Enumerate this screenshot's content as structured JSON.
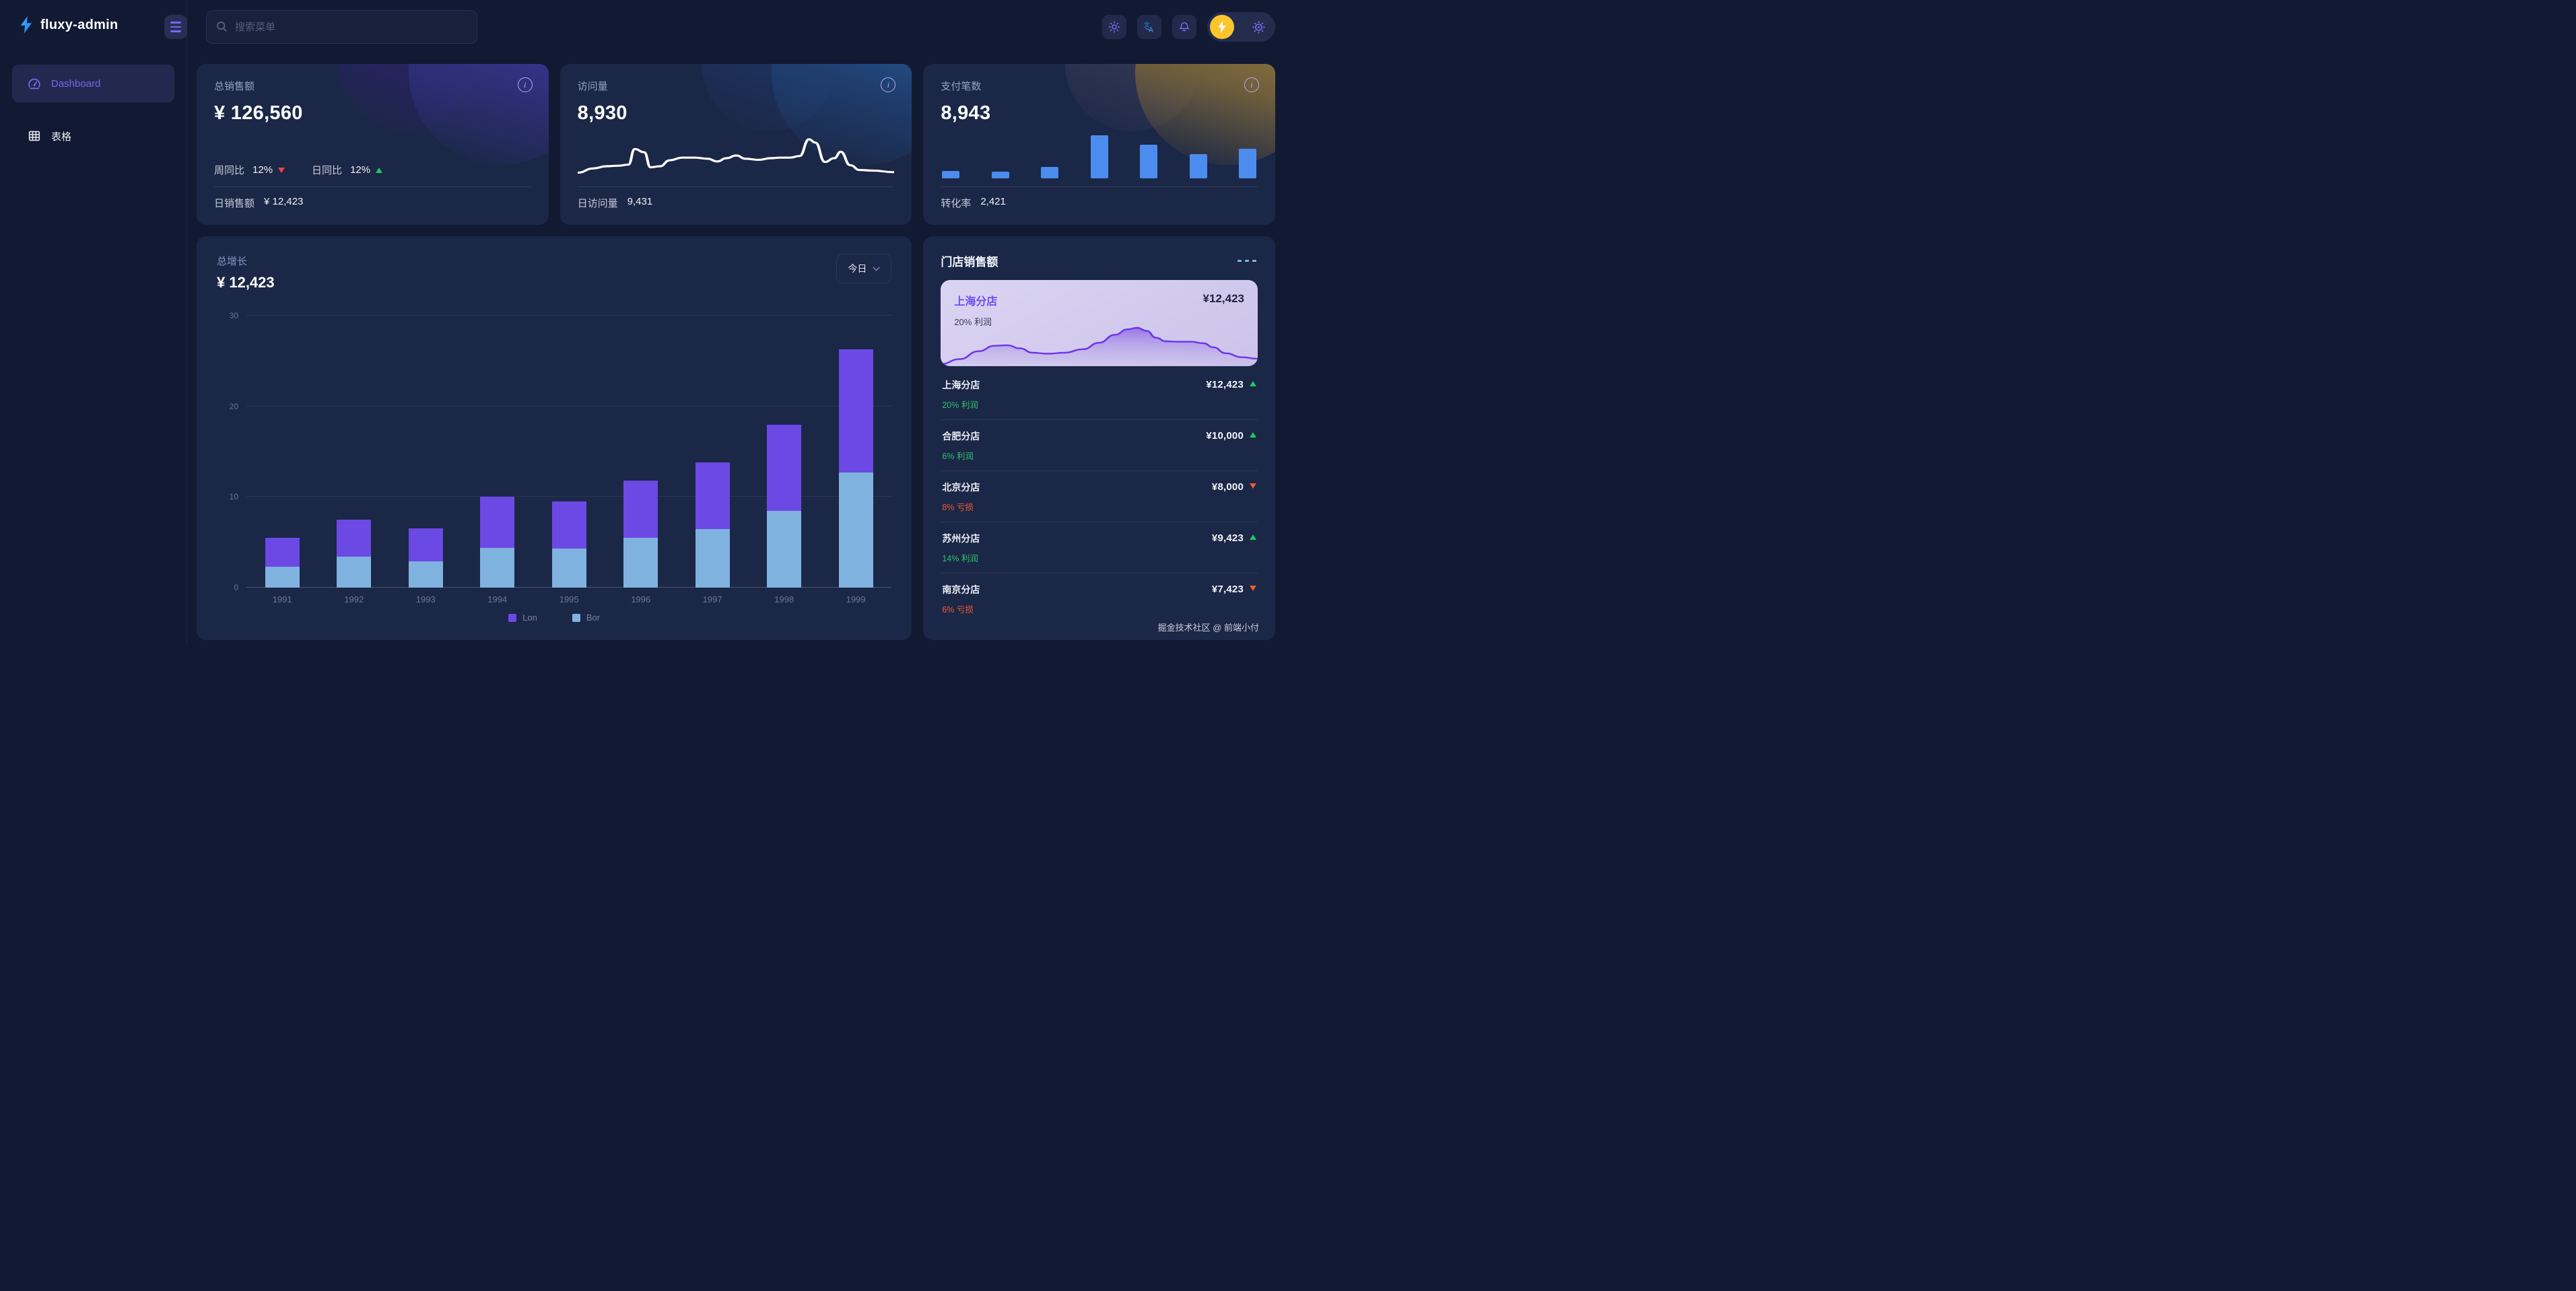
{
  "brand": {
    "name": "fluxy-admin"
  },
  "header": {
    "search_placeholder": "搜索菜单"
  },
  "sidebar": {
    "items": [
      {
        "label": "Dashboard",
        "active": true
      },
      {
        "label": "表格",
        "active": false
      }
    ]
  },
  "stat_cards": {
    "sales": {
      "title": "总销售额",
      "value": "¥ 126,560",
      "trends": [
        {
          "label": "周同比",
          "value": "12%",
          "direction": "down"
        },
        {
          "label": "日同比",
          "value": "12%",
          "direction": "up"
        }
      ],
      "footer_label": "日销售额",
      "footer_value": "¥ 12,423"
    },
    "visits": {
      "title": "访问量",
      "value": "8,930",
      "footer_label": "日访问量",
      "footer_value": "9,431",
      "sparkline": [
        [
          0,
          18
        ],
        [
          5,
          26
        ],
        [
          9,
          30
        ],
        [
          13,
          31
        ],
        [
          16,
          33
        ],
        [
          18,
          62
        ],
        [
          21,
          56
        ],
        [
          23,
          28
        ],
        [
          26,
          30
        ],
        [
          29,
          41
        ],
        [
          33,
          46
        ],
        [
          37,
          46
        ],
        [
          41,
          44
        ],
        [
          44,
          39
        ],
        [
          47,
          45
        ],
        [
          50,
          50
        ],
        [
          53,
          44
        ],
        [
          57,
          42
        ],
        [
          61,
          45
        ],
        [
          64,
          46
        ],
        [
          67,
          46
        ],
        [
          70,
          49
        ],
        [
          73,
          80
        ],
        [
          75,
          74
        ],
        [
          78,
          38
        ],
        [
          81,
          45
        ],
        [
          83,
          57
        ],
        [
          86,
          32
        ],
        [
          89,
          23
        ],
        [
          93,
          22
        ],
        [
          100,
          19
        ]
      ]
    },
    "payments": {
      "title": "支付笔数",
      "value": "8,943",
      "footer_label": "转化率",
      "footer_value": "2,421",
      "bars": [
        17,
        15,
        27,
        100,
        78,
        57,
        69
      ]
    }
  },
  "growth": {
    "title": "总增长",
    "value": "¥ 12,423",
    "range_label": "今日",
    "chart_data": {
      "type": "bar",
      "stacked": true,
      "categories": [
        "1991",
        "1992",
        "1993",
        "1994",
        "1995",
        "1996",
        "1997",
        "1998",
        "1999"
      ],
      "series": [
        {
          "name": "Lon",
          "color": "#6C49E4",
          "values": [
            3.2,
            4.1,
            3.6,
            5.6,
            5.2,
            6.3,
            7.3,
            9.5,
            13.6
          ]
        },
        {
          "name": "Bor",
          "color": "#7FB2DF",
          "values": [
            2.3,
            3.4,
            2.9,
            4.4,
            4.3,
            5.5,
            6.5,
            8.5,
            12.7
          ]
        }
      ],
      "ylim": [
        0,
        30
      ],
      "yticks": [
        0,
        10,
        20,
        30
      ],
      "grid": true,
      "legend_position": "bottom"
    }
  },
  "stores": {
    "title": "门店销售额",
    "featured": {
      "name": "上海分店",
      "value": "¥12,423",
      "sub": "20% 利润",
      "area": [
        [
          0,
          4
        ],
        [
          6,
          14
        ],
        [
          12,
          30
        ],
        [
          17,
          41
        ],
        [
          21,
          42
        ],
        [
          25,
          36
        ],
        [
          29,
          27
        ],
        [
          34,
          25
        ],
        [
          39,
          27
        ],
        [
          45,
          34
        ],
        [
          50,
          47
        ],
        [
          55,
          63
        ],
        [
          59,
          74
        ],
        [
          62,
          77
        ],
        [
          65,
          71
        ],
        [
          68,
          57
        ],
        [
          71,
          50
        ],
        [
          75,
          49
        ],
        [
          79,
          49
        ],
        [
          83,
          46
        ],
        [
          86,
          38
        ],
        [
          90,
          26
        ],
        [
          95,
          18
        ],
        [
          100,
          15
        ]
      ]
    },
    "rows": [
      {
        "name": "上海分店",
        "sub": "20% 利润",
        "value": "¥12,423",
        "direction": "up",
        "type": "profit"
      },
      {
        "name": "合肥分店",
        "sub": "6% 利润",
        "value": "¥10,000",
        "direction": "up",
        "type": "profit"
      },
      {
        "name": "北京分店",
        "sub": "8% 亏损",
        "value": "¥8,000",
        "direction": "down",
        "type": "loss"
      },
      {
        "name": "苏州分店",
        "sub": "14% 利润",
        "value": "¥9,423",
        "direction": "up",
        "type": "profit"
      },
      {
        "name": "南京分店",
        "sub": "6% 亏损",
        "value": "¥7,423",
        "direction": "down",
        "type": "loss"
      }
    ]
  },
  "watermark": "掘金技术社区 @ 前端小付",
  "colors": {
    "accent_purple": "#6C49E4",
    "accent_light_blue": "#7FB2DF",
    "mini_bar_blue": "#4C8CEE",
    "up_green": "#22C55E",
    "trend_down_red": "#EF4444",
    "loss_orange": "#EE5B33",
    "brand_blue": "#2F9BF6",
    "avatar_yellow": "#FBC62B",
    "card_bg": "#1B2746",
    "page_bg": "#121A33"
  }
}
